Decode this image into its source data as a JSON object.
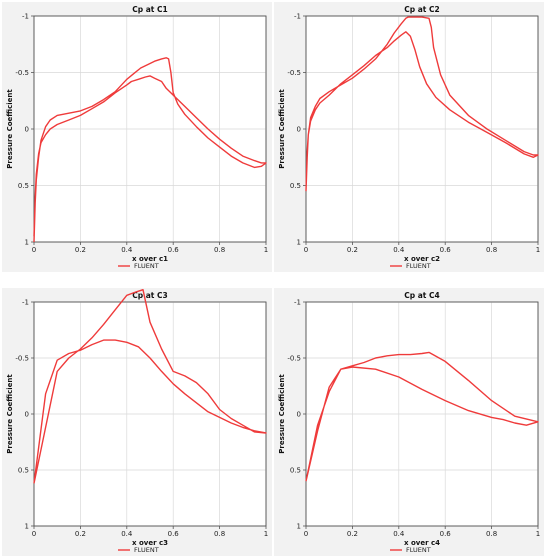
{
  "colors": {
    "series": "#ef3b3b",
    "background": "#f2f2f2"
  },
  "chart_data": [
    {
      "type": "line",
      "title": "Cp at C1",
      "xlabel": "x over c1",
      "ylabel": "Pressure Coefficient",
      "xlim": [
        0,
        1
      ],
      "ylim": [
        1,
        -1
      ],
      "y_inverted": true,
      "grid": true,
      "x_ticks": [
        "0",
        "0.2",
        "0.4",
        "0.6",
        "0.8",
        "1"
      ],
      "y_ticks": [
        "-1",
        "-0.5",
        "0",
        "0.5",
        "1"
      ],
      "legend": {
        "placement": "bottom",
        "entries": [
          "FLUENT"
        ]
      },
      "series": [
        {
          "name": "FLUENT",
          "x": [
            0.0,
            0.005,
            0.01,
            0.02,
            0.03,
            0.05,
            0.07,
            0.1,
            0.15,
            0.2,
            0.25,
            0.3,
            0.35,
            0.4,
            0.43,
            0.46,
            0.49,
            0.52,
            0.55,
            0.57,
            0.58,
            0.59,
            0.6,
            0.62,
            0.65,
            0.7,
            0.75,
            0.8,
            0.85,
            0.9,
            0.95,
            0.98,
            1.0,
            0.98,
            0.95,
            0.9,
            0.85,
            0.8,
            0.75,
            0.7,
            0.65,
            0.6,
            0.57,
            0.55,
            0.52,
            0.5,
            0.48,
            0.45,
            0.42,
            0.4,
            0.35,
            0.3,
            0.25,
            0.2,
            0.15,
            0.1,
            0.07,
            0.05,
            0.03,
            0.02,
            0.01,
            0.005,
            0.0
          ],
          "y": [
            1.0,
            0.65,
            0.45,
            0.25,
            0.1,
            -0.02,
            -0.08,
            -0.12,
            -0.14,
            -0.16,
            -0.2,
            -0.26,
            -0.33,
            -0.44,
            -0.49,
            -0.54,
            -0.57,
            -0.6,
            -0.62,
            -0.63,
            -0.62,
            -0.5,
            -0.32,
            -0.22,
            -0.13,
            -0.02,
            0.08,
            0.16,
            0.24,
            0.3,
            0.34,
            0.33,
            0.3,
            0.3,
            0.28,
            0.24,
            0.17,
            0.09,
            0.0,
            -0.1,
            -0.2,
            -0.3,
            -0.36,
            -0.42,
            -0.45,
            -0.47,
            -0.46,
            -0.44,
            -0.42,
            -0.39,
            -0.32,
            -0.24,
            -0.18,
            -0.12,
            -0.08,
            -0.04,
            0.0,
            0.05,
            0.12,
            0.22,
            0.4,
            0.6,
            0.95
          ]
        }
      ]
    },
    {
      "type": "line",
      "title": "Cp at C2",
      "xlabel": "x over c2",
      "ylabel": "Pressure Coefficient",
      "xlim": [
        0,
        1
      ],
      "ylim": [
        1,
        -1
      ],
      "y_inverted": true,
      "grid": true,
      "x_ticks": [
        "0",
        "0.2",
        "0.4",
        "0.6",
        "0.8",
        "1"
      ],
      "y_ticks": [
        "-1",
        "-0.5",
        "0",
        "0.5",
        "1"
      ],
      "legend": {
        "placement": "bottom",
        "entries": [
          "FLUENT"
        ]
      },
      "series": [
        {
          "name": "FLUENT",
          "x": [
            0.0,
            0.005,
            0.01,
            0.02,
            0.04,
            0.06,
            0.1,
            0.15,
            0.2,
            0.25,
            0.3,
            0.35,
            0.38,
            0.41,
            0.43,
            0.44,
            0.46,
            0.5,
            0.53,
            0.54,
            0.55,
            0.58,
            0.62,
            0.7,
            0.78,
            0.86,
            0.94,
            0.98,
            1.0,
            0.98,
            0.94,
            0.86,
            0.78,
            0.7,
            0.62,
            0.56,
            0.52,
            0.49,
            0.47,
            0.45,
            0.43,
            0.41,
            0.38,
            0.35,
            0.3,
            0.25,
            0.2,
            0.15,
            0.1,
            0.06,
            0.04,
            0.02,
            0.01,
            0.005,
            0.0
          ],
          "y": [
            0.55,
            0.25,
            0.05,
            -0.1,
            -0.2,
            -0.27,
            -0.33,
            -0.39,
            -0.45,
            -0.53,
            -0.62,
            -0.75,
            -0.85,
            -0.93,
            -0.98,
            -0.99,
            -0.99,
            -0.99,
            -0.98,
            -0.9,
            -0.72,
            -0.48,
            -0.3,
            -0.12,
            0.0,
            0.1,
            0.2,
            0.23,
            0.23,
            0.25,
            0.22,
            0.12,
            0.03,
            -0.06,
            -0.17,
            -0.28,
            -0.4,
            -0.55,
            -0.7,
            -0.82,
            -0.86,
            -0.83,
            -0.78,
            -0.72,
            -0.65,
            -0.56,
            -0.48,
            -0.4,
            -0.3,
            -0.23,
            -0.17,
            -0.07,
            0.05,
            0.2,
            0.55
          ]
        }
      ]
    },
    {
      "type": "line",
      "title": "Cp at C3",
      "xlabel": "x over c3",
      "ylabel": "Pressure Coefficient",
      "xlim": [
        0,
        1
      ],
      "ylim": [
        1,
        -1
      ],
      "y_inverted": true,
      "grid": true,
      "x_ticks": [
        "0",
        "0.2",
        "0.4",
        "0.6",
        "0.8",
        "1"
      ],
      "y_ticks": [
        "-1",
        "-0.5",
        "0",
        "0.5",
        "1"
      ],
      "legend": {
        "placement": "bottom",
        "entries": [
          "FLUENT"
        ]
      },
      "series": [
        {
          "name": "FLUENT",
          "x": [
            0.0,
            0.05,
            0.1,
            0.15,
            0.2,
            0.25,
            0.3,
            0.35,
            0.4,
            0.44,
            0.47,
            0.5,
            0.55,
            0.6,
            0.65,
            0.7,
            0.75,
            0.8,
            0.85,
            0.9,
            0.95,
            1.0,
            0.95,
            0.9,
            0.85,
            0.8,
            0.75,
            0.7,
            0.65,
            0.6,
            0.55,
            0.5,
            0.45,
            0.4,
            0.35,
            0.3,
            0.25,
            0.2,
            0.15,
            0.1,
            0.05,
            0.0
          ],
          "y": [
            0.62,
            0.12,
            -0.38,
            -0.5,
            -0.58,
            -0.68,
            -0.8,
            -0.93,
            -1.06,
            -1.09,
            -1.11,
            -0.82,
            -0.58,
            -0.38,
            -0.34,
            -0.28,
            -0.18,
            -0.04,
            0.04,
            0.1,
            0.16,
            0.17,
            0.15,
            0.12,
            0.08,
            0.03,
            -0.02,
            -0.1,
            -0.18,
            -0.27,
            -0.38,
            -0.5,
            -0.6,
            -0.64,
            -0.66,
            -0.66,
            -0.62,
            -0.57,
            -0.54,
            -0.48,
            -0.18,
            0.62
          ]
        }
      ]
    },
    {
      "type": "line",
      "title": "Cp at C4",
      "xlabel": "x over c4",
      "ylabel": "Pressure Coefficient",
      "xlim": [
        0,
        1
      ],
      "ylim": [
        1,
        -1
      ],
      "y_inverted": true,
      "grid": true,
      "x_ticks": [
        "0",
        "0.2",
        "0.4",
        "0.6",
        "0.8",
        "1"
      ],
      "y_ticks": [
        "-1",
        "-0.5",
        "0",
        "0.5",
        "1"
      ],
      "legend": {
        "placement": "bottom",
        "entries": [
          "FLUENT"
        ]
      },
      "series": [
        {
          "name": "FLUENT",
          "x": [
            0.0,
            0.05,
            0.1,
            0.15,
            0.2,
            0.25,
            0.3,
            0.35,
            0.4,
            0.45,
            0.5,
            0.53,
            0.6,
            0.7,
            0.8,
            0.9,
            1.0,
            0.95,
            0.9,
            0.85,
            0.8,
            0.7,
            0.6,
            0.5,
            0.4,
            0.3,
            0.2,
            0.15,
            0.1,
            0.05,
            0.0
          ],
          "y": [
            0.6,
            0.1,
            -0.2,
            -0.4,
            -0.43,
            -0.46,
            -0.5,
            -0.52,
            -0.53,
            -0.53,
            -0.54,
            -0.55,
            -0.47,
            -0.3,
            -0.12,
            0.02,
            0.07,
            0.1,
            0.08,
            0.05,
            0.03,
            -0.03,
            -0.12,
            -0.22,
            -0.33,
            -0.4,
            -0.42,
            -0.4,
            -0.24,
            0.15,
            0.6
          ]
        }
      ]
    }
  ]
}
